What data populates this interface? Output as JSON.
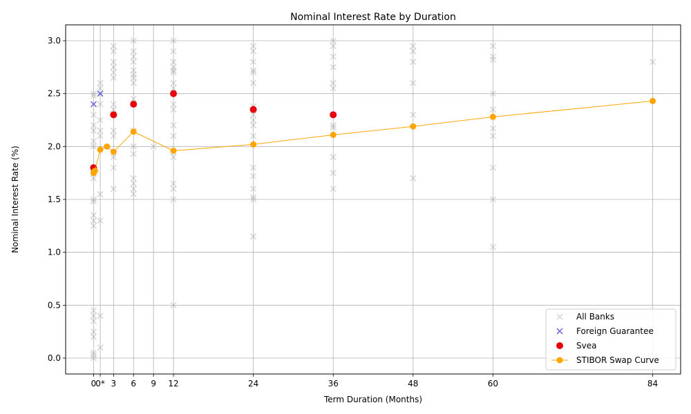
{
  "chart_data": {
    "type": "scatter",
    "title": "Nominal Interest Rate by Duration",
    "xlabel": "Term Duration (Months)",
    "ylabel": "Nominal Interest Rate (%)",
    "xlim": [
      -4.2,
      88.2
    ],
    "ylim": [
      -0.15,
      3.15
    ],
    "grid": true,
    "legend_position": "lower right",
    "x_ticks": [
      {
        "value": 0,
        "label": "0"
      },
      {
        "value": 1,
        "label": "0*"
      },
      {
        "value": 3,
        "label": "3"
      },
      {
        "value": 6,
        "label": "6"
      },
      {
        "value": 9,
        "label": "9"
      },
      {
        "value": 12,
        "label": "12"
      },
      {
        "value": 24,
        "label": "24"
      },
      {
        "value": 36,
        "label": "36"
      },
      {
        "value": 48,
        "label": "48"
      },
      {
        "value": 60,
        "label": "60"
      },
      {
        "value": 84,
        "label": "84"
      }
    ],
    "y_ticks": [
      {
        "value": 0,
        "label": "0.0"
      },
      {
        "value": 0.5,
        "label": "0.5"
      },
      {
        "value": 1,
        "label": "1.0"
      },
      {
        "value": 1.5,
        "label": "1.5"
      },
      {
        "value": 2,
        "label": "2.0"
      },
      {
        "value": 2.5,
        "label": "2.5"
      },
      {
        "value": 3,
        "label": "3.0"
      }
    ],
    "colors": {
      "all_banks": "#b4b4b4",
      "foreign_guarantee": "#6666dd",
      "svea": "#e8000b",
      "stibor": "#ffa500"
    },
    "series": [
      {
        "name": "All Banks",
        "marker": "x",
        "points": [
          [
            0,
            2.5
          ],
          [
            0,
            2.48
          ],
          [
            0,
            2.4
          ],
          [
            0,
            2.3
          ],
          [
            0,
            2.2
          ],
          [
            0,
            2.15
          ],
          [
            0,
            2.05
          ],
          [
            0,
            2.0
          ],
          [
            0,
            1.8
          ],
          [
            0,
            1.75
          ],
          [
            0,
            1.7
          ],
          [
            0,
            1.5
          ],
          [
            0,
            1.48
          ],
          [
            0,
            1.35
          ],
          [
            0,
            1.3
          ],
          [
            0,
            1.25
          ],
          [
            0,
            0.45
          ],
          [
            0,
            0.4
          ],
          [
            0,
            0.35
          ],
          [
            0,
            0.25
          ],
          [
            0,
            0.2
          ],
          [
            0,
            0.05
          ],
          [
            0,
            0.03
          ],
          [
            0,
            0.0
          ],
          [
            1,
            2.6
          ],
          [
            1,
            2.55
          ],
          [
            1,
            2.4
          ],
          [
            1,
            2.25
          ],
          [
            1,
            2.15
          ],
          [
            1,
            2.1
          ],
          [
            1,
            1.55
          ],
          [
            1,
            1.3
          ],
          [
            1,
            0.4
          ],
          [
            1,
            0.1
          ],
          [
            3,
            2.95
          ],
          [
            3,
            2.9
          ],
          [
            3,
            2.8
          ],
          [
            3,
            2.75
          ],
          [
            3,
            2.7
          ],
          [
            3,
            2.65
          ],
          [
            3,
            2.4
          ],
          [
            3,
            2.35
          ],
          [
            3,
            2.15
          ],
          [
            3,
            2.1
          ],
          [
            3,
            1.9
          ],
          [
            3,
            1.8
          ],
          [
            3,
            1.6
          ],
          [
            6,
            3.0
          ],
          [
            6,
            2.9
          ],
          [
            6,
            2.85
          ],
          [
            6,
            2.8
          ],
          [
            6,
            2.72
          ],
          [
            6,
            2.68
          ],
          [
            6,
            2.65
          ],
          [
            6,
            2.6
          ],
          [
            6,
            2.45
          ],
          [
            6,
            2.4
          ],
          [
            6,
            2.15
          ],
          [
            6,
            2.0
          ],
          [
            6,
            1.93
          ],
          [
            6,
            1.7
          ],
          [
            6,
            1.65
          ],
          [
            6,
            1.6
          ],
          [
            6,
            1.55
          ],
          [
            9,
            2.0
          ],
          [
            12,
            3.0
          ],
          [
            12,
            2.9
          ],
          [
            12,
            2.8
          ],
          [
            12,
            2.75
          ],
          [
            12,
            2.72
          ],
          [
            12,
            2.7
          ],
          [
            12,
            2.6
          ],
          [
            12,
            2.55
          ],
          [
            12,
            2.4
          ],
          [
            12,
            2.35
          ],
          [
            12,
            2.2
          ],
          [
            12,
            2.1
          ],
          [
            12,
            1.95
          ],
          [
            12,
            1.9
          ],
          [
            12,
            1.65
          ],
          [
            12,
            1.6
          ],
          [
            12,
            1.5
          ],
          [
            12,
            0.5
          ],
          [
            24,
            2.95
          ],
          [
            24,
            2.9
          ],
          [
            24,
            2.8
          ],
          [
            24,
            2.72
          ],
          [
            24,
            2.7
          ],
          [
            24,
            2.6
          ],
          [
            24,
            2.38
          ],
          [
            24,
            2.3
          ],
          [
            24,
            2.25
          ],
          [
            24,
            2.2
          ],
          [
            24,
            2.1
          ],
          [
            24,
            1.8
          ],
          [
            24,
            1.72
          ],
          [
            24,
            1.6
          ],
          [
            24,
            1.52
          ],
          [
            24,
            1.5
          ],
          [
            24,
            1.15
          ],
          [
            36,
            3.0
          ],
          [
            36,
            2.95
          ],
          [
            36,
            2.85
          ],
          [
            36,
            2.75
          ],
          [
            36,
            2.6
          ],
          [
            36,
            2.55
          ],
          [
            36,
            2.2
          ],
          [
            36,
            2.18
          ],
          [
            36,
            1.9
          ],
          [
            36,
            1.75
          ],
          [
            36,
            1.6
          ],
          [
            48,
            2.95
          ],
          [
            48,
            2.9
          ],
          [
            48,
            2.8
          ],
          [
            48,
            2.6
          ],
          [
            48,
            2.3
          ],
          [
            48,
            1.7
          ],
          [
            60,
            2.95
          ],
          [
            60,
            2.85
          ],
          [
            60,
            2.82
          ],
          [
            60,
            2.5
          ],
          [
            60,
            2.35
          ],
          [
            60,
            2.17
          ],
          [
            60,
            2.1
          ],
          [
            60,
            1.8
          ],
          [
            60,
            1.5
          ],
          [
            60,
            1.05
          ],
          [
            84,
            2.8
          ]
        ]
      },
      {
        "name": "Foreign Guarantee",
        "marker": "x",
        "points": [
          [
            0,
            2.4
          ],
          [
            1,
            2.5
          ]
        ]
      },
      {
        "name": "Svea",
        "marker": "o",
        "points": [
          [
            0,
            1.8
          ],
          [
            3,
            2.3
          ],
          [
            6,
            2.4
          ],
          [
            12,
            2.5
          ],
          [
            24,
            2.35
          ],
          [
            36,
            2.3
          ]
        ]
      },
      {
        "name": "STIBOR Swap Curve",
        "marker": "o-line",
        "points": [
          [
            0,
            1.75
          ],
          [
            0.2,
            1.77
          ],
          [
            1,
            1.97
          ],
          [
            2,
            2.0
          ],
          [
            3,
            1.95
          ],
          [
            6,
            2.14
          ],
          [
            12,
            1.96
          ],
          [
            24,
            2.02
          ],
          [
            36,
            2.11
          ],
          [
            48,
            2.19
          ],
          [
            60,
            2.28
          ],
          [
            84,
            2.43
          ]
        ]
      }
    ]
  }
}
